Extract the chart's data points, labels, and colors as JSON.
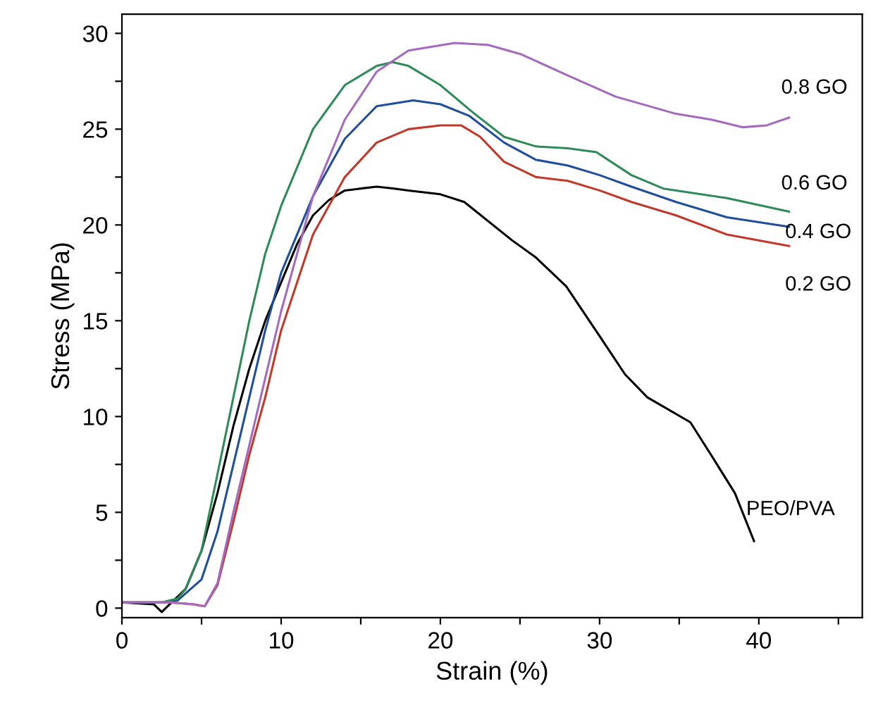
{
  "chart_data": {
    "type": "line",
    "xlabel": "Strain (%)",
    "ylabel": "Stress (MPa)",
    "xlim": [
      0,
      46.5
    ],
    "ylim": [
      -0.5,
      31
    ],
    "xticks": [
      0,
      {
        "value": 5,
        "label": null
      },
      10,
      {
        "value": 15,
        "label": null
      },
      20,
      {
        "value": 25,
        "label": null
      },
      30,
      {
        "value": 35,
        "label": null
      },
      40,
      {
        "value": 45,
        "label": null
      }
    ],
    "yticks": [
      0,
      {
        "value": 2.5,
        "label": null
      },
      5,
      {
        "value": 7.5,
        "label": null
      },
      10,
      {
        "value": 12.5,
        "label": null
      },
      15,
      {
        "value": 17.5,
        "label": null
      },
      20,
      {
        "value": 22.5,
        "label": null
      },
      25,
      {
        "value": 27.5,
        "label": null
      },
      30
    ],
    "grid": false,
    "marker": "none",
    "line_style": "solid",
    "series": [
      {
        "name": "PEO/PVA",
        "color": "#000000",
        "x": [
          0,
          2,
          2.5,
          3,
          4,
          5,
          6,
          7,
          8,
          9,
          10,
          11,
          12,
          13,
          14,
          16,
          17.1,
          18,
          20,
          21.5,
          24.5,
          26,
          27.9,
          30,
          31.6,
          33,
          35.7,
          37,
          38.5,
          39.7
        ],
        "values": [
          0.3,
          0.2,
          -0.2,
          0.2,
          1,
          3,
          6,
          9.5,
          12.5,
          15,
          17,
          19,
          20.5,
          21.3,
          21.8,
          22,
          21.9,
          21.8,
          21.6,
          21.2,
          19.2,
          18.3,
          16.8,
          14.2,
          12.2,
          11,
          9.7,
          8,
          6,
          3.5
        ]
      },
      {
        "name": "0.2 GO",
        "color": "#c0392b",
        "x": [
          0,
          3,
          4.5,
          5.2,
          6,
          7,
          8,
          9,
          10,
          12,
          14,
          16,
          18,
          20,
          21.3,
          22.5,
          24,
          26,
          28,
          30,
          32,
          34.8,
          38,
          41.9
        ],
        "values": [
          0.3,
          0.3,
          0.2,
          0.1,
          1.2,
          4.5,
          8,
          11,
          14.5,
          19.5,
          22.5,
          24.3,
          25,
          25.2,
          25.2,
          24.6,
          23.3,
          22.5,
          22.3,
          21.8,
          21.2,
          20.5,
          19.5,
          18.9
        ]
      },
      {
        "name": "0.4 GO",
        "color": "#1f4e9a",
        "x": [
          0,
          2.5,
          3.5,
          5,
          6,
          7,
          8,
          9,
          10,
          12,
          14,
          16,
          18.3,
          20,
          21.8,
          24,
          26,
          28,
          30,
          32,
          34.8,
          38,
          41.9
        ],
        "values": [
          0.3,
          0.3,
          0.4,
          1.5,
          4,
          7.5,
          11,
          14.5,
          17.5,
          21.5,
          24.5,
          26.2,
          26.5,
          26.3,
          25.7,
          24.3,
          23.4,
          23.1,
          22.6,
          22,
          21.2,
          20.4,
          19.9
        ]
      },
      {
        "name": "0.6 GO",
        "color": "#2e8b57",
        "x": [
          0,
          2.5,
          3.5,
          4,
          5,
          6,
          7,
          8,
          9,
          10,
          12,
          14,
          16,
          17,
          18,
          20,
          22,
          24,
          26,
          28,
          29.8,
          32,
          34,
          38,
          41.9
        ],
        "values": [
          0.3,
          0.3,
          0.5,
          1,
          3,
          7,
          11,
          15,
          18.5,
          21,
          25,
          27.3,
          28.3,
          28.5,
          28.3,
          27.3,
          25.9,
          24.6,
          24.1,
          24,
          23.8,
          22.6,
          21.9,
          21.4,
          20.7
        ]
      },
      {
        "name": "0.8 GO",
        "color": "#a569bd",
        "x": [
          0,
          3,
          4.5,
          5.2,
          6,
          7,
          8,
          9,
          10,
          12,
          14,
          16,
          18,
          20.9,
          23,
          25.1,
          28,
          31,
          34.8,
          37,
          39,
          40.5,
          41.9
        ],
        "values": [
          0.3,
          0.3,
          0.2,
          0.1,
          1.3,
          5,
          8.5,
          12,
          15.5,
          21.5,
          25.5,
          28,
          29.1,
          29.5,
          29.4,
          28.9,
          27.8,
          26.7,
          25.8,
          25.5,
          25.1,
          25.2,
          25.6
        ]
      }
    ]
  }
}
